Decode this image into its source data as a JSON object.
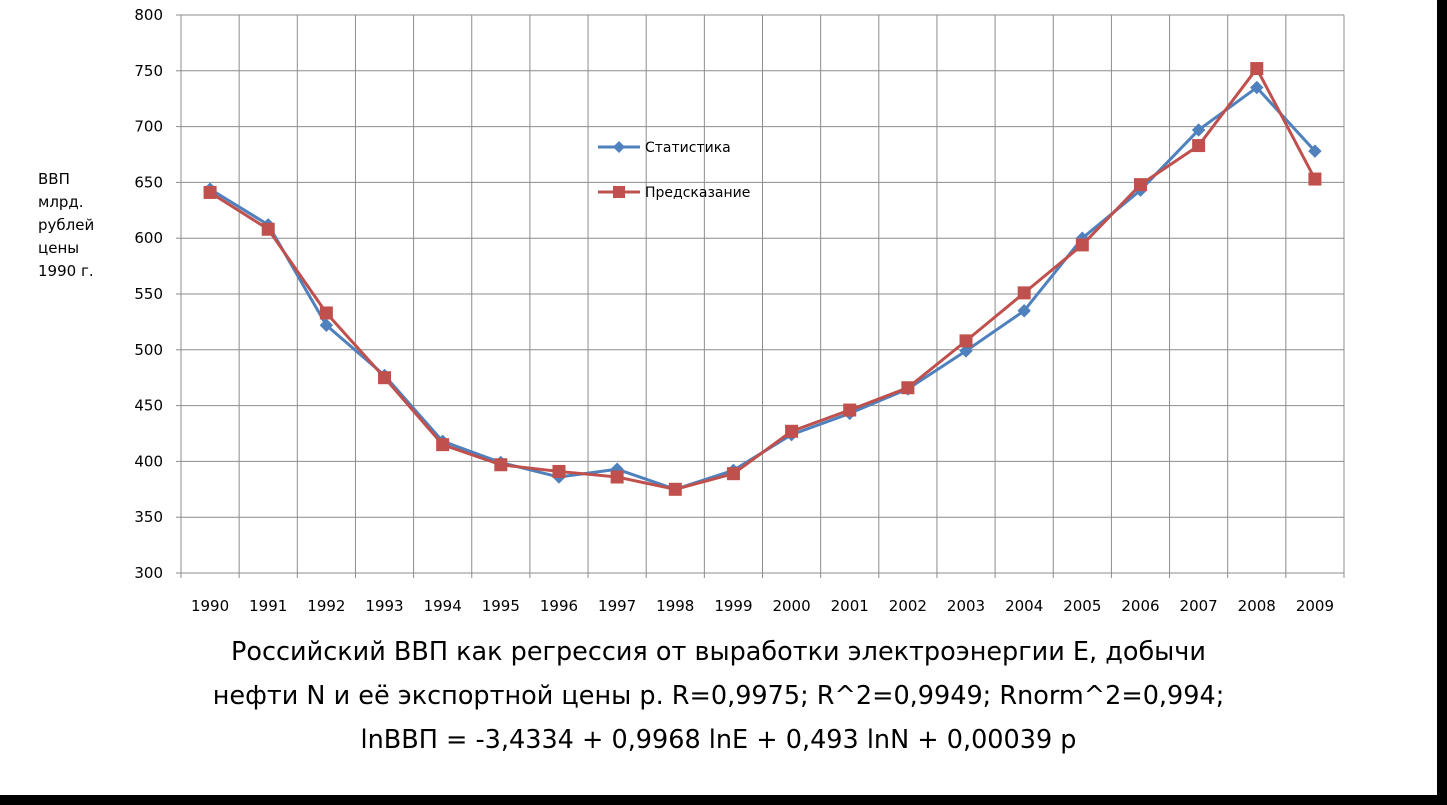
{
  "ylabel_lines": [
    "ВВП",
    "млрд.",
    "рублей",
    "цены",
    "1990 г."
  ],
  "caption": {
    "line1": "Российский ВВП как регрессия от выработки электроэнергии E, добычи",
    "line2": "нефти N и  её экспортной цены p.  R=0,9975;  R^2=0,9949;  Rnorm^2=0,994;",
    "line3": "lnВВП = -3,4334 + 0,9968 lnE + 0,493 lnN + 0,00039 p"
  },
  "colors": {
    "series1": "#4f81bd",
    "series2": "#c0504d",
    "grid": "#8c8c8c"
  },
  "chart_data": {
    "type": "line",
    "title": "",
    "xlabel": "",
    "ylabel": "ВВП млрд. рублей цены 1990 г.",
    "ylim": [
      300,
      800
    ],
    "yticks": [
      300,
      350,
      400,
      450,
      500,
      550,
      600,
      650,
      700,
      750,
      800
    ],
    "grid": true,
    "legend_position": "upper-center",
    "categories": [
      "1990",
      "1991",
      "1992",
      "1993",
      "1994",
      "1995",
      "1996",
      "1997",
      "1998",
      "1999",
      "2000",
      "2001",
      "2002",
      "2003",
      "2004",
      "2005",
      "2006",
      "2007",
      "2008",
      "2009"
    ],
    "series": [
      {
        "name": "Статистика",
        "marker": "diamond",
        "values": [
          644,
          612,
          522,
          477,
          418,
          399,
          386,
          393,
          375,
          392,
          424,
          443,
          465,
          499,
          535,
          600,
          643,
          697,
          735,
          678
        ]
      },
      {
        "name": "Предсказание",
        "marker": "square",
        "values": [
          641,
          608,
          533,
          475,
          415,
          397,
          391,
          386,
          375,
          389,
          427,
          446,
          466,
          508,
          551,
          594,
          648,
          683,
          752,
          653
        ]
      }
    ]
  }
}
